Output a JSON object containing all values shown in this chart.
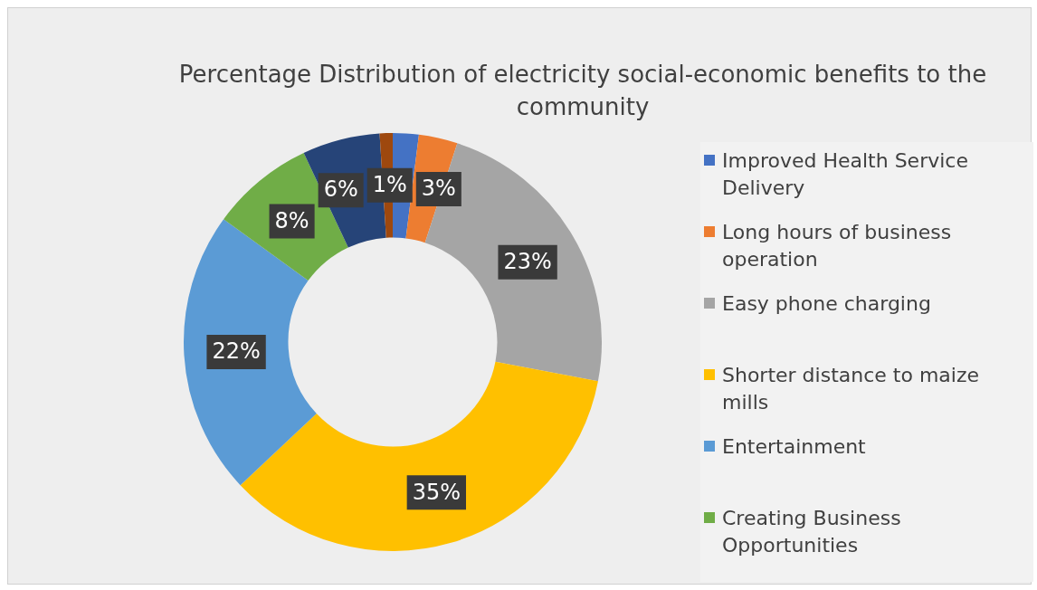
{
  "chart_data": {
    "type": "donut",
    "title": "Percentage Distribution of electricity social-economic benefits to the community",
    "categories": [
      "Improved Health Service Delivery",
      "Long hours of business operation",
      "Easy phone charging",
      "Shorter distance to maize mills",
      "Entertainment",
      "Creating Business Opportunities",
      null,
      null
    ],
    "values": [
      2,
      3,
      23,
      35,
      22,
      8,
      6,
      1
    ],
    "value_labels": [
      null,
      "3%",
      "23%",
      "35%",
      "22%",
      "8%",
      "6%",
      "1%"
    ],
    "colors": [
      "#4472c4",
      "#ed7d31",
      "#a5a5a5",
      "#ffc000",
      "#5b9bd5",
      "#70ad47",
      "#264478",
      "#9e480e"
    ],
    "legend": "right"
  }
}
